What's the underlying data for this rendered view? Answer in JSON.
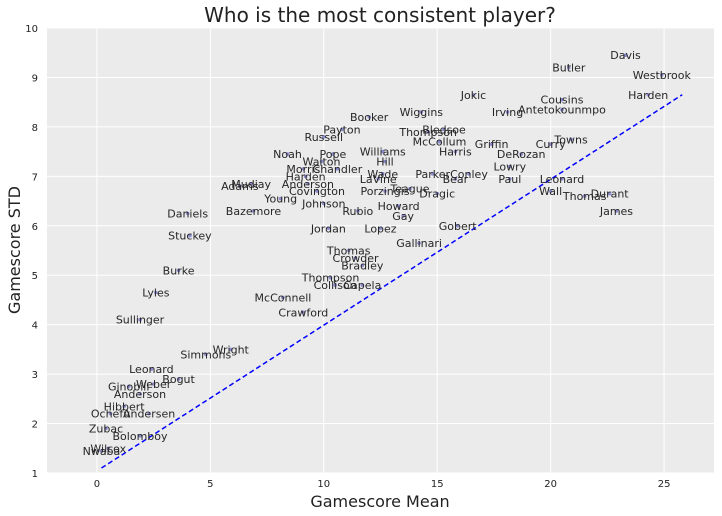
{
  "chart_data": {
    "type": "scatter",
    "title": "Who is the most consistent player?",
    "xlabel": "Gamescore Mean",
    "ylabel": "Gamescore STD",
    "xlim": [
      -2.2,
      27.2
    ],
    "ylim": [
      1,
      10
    ],
    "xticks": [
      "0",
      "5",
      "10",
      "15",
      "20",
      "25"
    ],
    "xtick_values": [
      0,
      5,
      10,
      15,
      20,
      25
    ],
    "yticks": [
      "1",
      "2",
      "3",
      "4",
      "5",
      "6",
      "7",
      "8",
      "9",
      "10"
    ],
    "ytick_values": [
      1,
      2,
      3,
      4,
      5,
      6,
      7,
      8,
      9,
      10
    ],
    "grid": true,
    "colors": {
      "background": "#ebebeb",
      "grid": "#ffffff",
      "points": "#8c8ccf",
      "trend": "#0000ff",
      "label": "#262626"
    },
    "trend_line": {
      "style": "dashed",
      "x": [
        0.2,
        25.8
      ],
      "y": [
        1.1,
        8.65
      ]
    },
    "points": [
      {
        "label": "Davis",
        "x": 23.3,
        "y": 9.45
      },
      {
        "label": "Butler",
        "x": 20.8,
        "y": 9.2
      },
      {
        "label": "Westbrook",
        "x": 24.9,
        "y": 9.05
      },
      {
        "label": "Harden",
        "x": 24.3,
        "y": 8.65
      },
      {
        "label": "Jokic",
        "x": 16.6,
        "y": 8.65
      },
      {
        "label": "Cousins",
        "x": 20.5,
        "y": 8.55
      },
      {
        "label": "Irving",
        "x": 18.1,
        "y": 8.3
      },
      {
        "label": "Antetokounmpo",
        "x": 20.5,
        "y": 8.35
      },
      {
        "label": "Wiggins",
        "x": 14.3,
        "y": 8.3
      },
      {
        "label": "Booker",
        "x": 12.0,
        "y": 8.2
      },
      {
        "label": "Payton",
        "x": 10.8,
        "y": 7.95
      },
      {
        "label": "Russell",
        "x": 10.0,
        "y": 7.8
      },
      {
        "label": "Thompson",
        "x": 14.6,
        "y": 7.9
      },
      {
        "label": "Bledsoe",
        "x": 15.3,
        "y": 7.95
      },
      {
        "label": "McCollum",
        "x": 15.1,
        "y": 7.7
      },
      {
        "label": "Griffin",
        "x": 17.4,
        "y": 7.65
      },
      {
        "label": "Towns",
        "x": 20.9,
        "y": 7.75
      },
      {
        "label": "Curry",
        "x": 20.0,
        "y": 7.65
      },
      {
        "label": "DeRozan",
        "x": 18.7,
        "y": 7.45
      },
      {
        "label": "Lowry",
        "x": 18.2,
        "y": 7.2
      },
      {
        "label": "Noah",
        "x": 8.4,
        "y": 7.45
      },
      {
        "label": "Pope",
        "x": 10.4,
        "y": 7.45
      },
      {
        "label": "Williams",
        "x": 12.6,
        "y": 7.5
      },
      {
        "label": "Hill",
        "x": 12.7,
        "y": 7.3
      },
      {
        "label": "Wade",
        "x": 12.6,
        "y": 7.05
      },
      {
        "label": "Harris",
        "x": 15.8,
        "y": 7.5
      },
      {
        "label": "Parker",
        "x": 14.8,
        "y": 7.05
      },
      {
        "label": "Conley",
        "x": 16.4,
        "y": 7.05
      },
      {
        "label": "Bear",
        "x": 15.8,
        "y": 6.95
      },
      {
        "label": "Paul",
        "x": 18.2,
        "y": 6.95
      },
      {
        "label": "Leonard",
        "x": 20.5,
        "y": 6.95
      },
      {
        "label": "Wall",
        "x": 20.0,
        "y": 6.7
      },
      {
        "label": "Thomas",
        "x": 21.5,
        "y": 6.6
      },
      {
        "label": "Durant",
        "x": 22.6,
        "y": 6.65
      },
      {
        "label": "James",
        "x": 22.9,
        "y": 6.3
      },
      {
        "label": "Morris",
        "x": 9.1,
        "y": 7.15
      },
      {
        "label": "Walton",
        "x": 9.9,
        "y": 7.3
      },
      {
        "label": "Chandler",
        "x": 10.6,
        "y": 7.15
      },
      {
        "label": "Harden",
        "x": 9.2,
        "y": 7.0
      },
      {
        "label": "LaVine",
        "x": 12.4,
        "y": 6.95
      },
      {
        "label": "Anderson",
        "x": 9.3,
        "y": 6.85
      },
      {
        "label": "Mudiay",
        "x": 6.8,
        "y": 6.85
      },
      {
        "label": "Adams",
        "x": 6.3,
        "y": 6.8
      },
      {
        "label": "Covington",
        "x": 9.7,
        "y": 6.7
      },
      {
        "label": "Porzingis",
        "x": 12.7,
        "y": 6.7
      },
      {
        "label": "Teague",
        "x": 13.8,
        "y": 6.75
      },
      {
        "label": "Dragic",
        "x": 15.0,
        "y": 6.65
      },
      {
        "label": "Young",
        "x": 8.1,
        "y": 6.55
      },
      {
        "label": "Johnson",
        "x": 10.0,
        "y": 6.45
      },
      {
        "label": "Howard",
        "x": 13.3,
        "y": 6.4
      },
      {
        "label": "Rubio",
        "x": 11.5,
        "y": 6.3
      },
      {
        "label": "Gay",
        "x": 13.5,
        "y": 6.2
      },
      {
        "label": "Gobert",
        "x": 15.9,
        "y": 6.0
      },
      {
        "label": "Daniels",
        "x": 4.0,
        "y": 6.25
      },
      {
        "label": "Bazemore",
        "x": 6.9,
        "y": 6.3
      },
      {
        "label": "Jordan",
        "x": 10.2,
        "y": 5.95
      },
      {
        "label": "Lopez",
        "x": 12.5,
        "y": 5.95
      },
      {
        "label": "Gallinari",
        "x": 14.2,
        "y": 5.65
      },
      {
        "label": "Stuckey",
        "x": 4.1,
        "y": 5.8
      },
      {
        "label": "Thomas",
        "x": 11.1,
        "y": 5.5
      },
      {
        "label": "Crowder",
        "x": 11.4,
        "y": 5.35
      },
      {
        "label": "Bradley",
        "x": 11.7,
        "y": 5.2
      },
      {
        "label": "Thompson",
        "x": 10.3,
        "y": 4.95
      },
      {
        "label": "Collison",
        "x": 10.5,
        "y": 4.8
      },
      {
        "label": "Capela",
        "x": 11.7,
        "y": 4.8
      },
      {
        "label": "McConnell",
        "x": 8.2,
        "y": 4.55
      },
      {
        "label": "Crawford",
        "x": 9.1,
        "y": 4.25
      },
      {
        "label": "Burke",
        "x": 3.6,
        "y": 5.1
      },
      {
        "label": "Lyles",
        "x": 2.6,
        "y": 4.65
      },
      {
        "label": "Sullinger",
        "x": 1.9,
        "y": 4.1
      },
      {
        "label": "Wright",
        "x": 5.9,
        "y": 3.5
      },
      {
        "label": "Simmons",
        "x": 4.8,
        "y": 3.4
      },
      {
        "label": "Leonard",
        "x": 2.4,
        "y": 3.1
      },
      {
        "label": "Bogut",
        "x": 3.6,
        "y": 2.9
      },
      {
        "label": "Weber",
        "x": 2.5,
        "y": 2.8
      },
      {
        "label": "Ginobili",
        "x": 1.4,
        "y": 2.75
      },
      {
        "label": "Anderson",
        "x": 1.9,
        "y": 2.6
      },
      {
        "label": "Hibbert",
        "x": 1.2,
        "y": 2.35
      },
      {
        "label": "Ochefu",
        "x": 0.6,
        "y": 2.2
      },
      {
        "label": "Andersen",
        "x": 2.3,
        "y": 2.2
      },
      {
        "label": "Zubac",
        "x": 0.4,
        "y": 1.9
      },
      {
        "label": "Bolomboy",
        "x": 1.9,
        "y": 1.75
      },
      {
        "label": "Wilcox",
        "x": 0.5,
        "y": 1.5
      },
      {
        "label": "Nwaba",
        "x": 0.2,
        "y": 1.45
      }
    ]
  }
}
